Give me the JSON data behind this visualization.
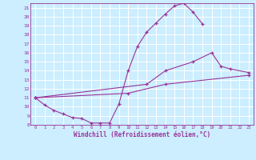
{
  "title": "",
  "xlabel": "Windchill (Refroidissement éolien,°C)",
  "bg_color": "#cceeff",
  "grid_color": "#ffffff",
  "line_color": "#993399",
  "xlim": [
    -0.5,
    23.5
  ],
  "ylim": [
    8,
    21.5
  ],
  "xticks": [
    0,
    1,
    2,
    3,
    4,
    5,
    6,
    7,
    8,
    9,
    10,
    11,
    12,
    13,
    14,
    15,
    16,
    17,
    18,
    19,
    20,
    21,
    22,
    23
  ],
  "yticks": [
    8,
    9,
    10,
    11,
    12,
    13,
    14,
    15,
    16,
    17,
    18,
    19,
    20,
    21
  ],
  "series": [
    {
      "x": [
        0,
        1,
        2,
        3,
        4,
        5,
        6,
        7,
        8,
        9,
        10,
        11,
        12,
        13,
        14,
        15,
        16,
        17,
        18
      ],
      "y": [
        11.0,
        10.2,
        9.6,
        9.2,
        8.8,
        8.7,
        8.2,
        8.2,
        8.2,
        10.3,
        14.0,
        16.7,
        18.3,
        19.3,
        20.3,
        21.2,
        21.5,
        20.5,
        19.2
      ]
    },
    {
      "x": [
        0,
        12,
        14,
        17,
        19,
        20,
        21,
        23
      ],
      "y": [
        11.0,
        12.5,
        14.0,
        15.0,
        16.0,
        14.5,
        14.2,
        13.8
      ]
    },
    {
      "x": [
        0,
        10,
        14,
        23
      ],
      "y": [
        11.0,
        11.5,
        12.5,
        13.5
      ]
    }
  ]
}
